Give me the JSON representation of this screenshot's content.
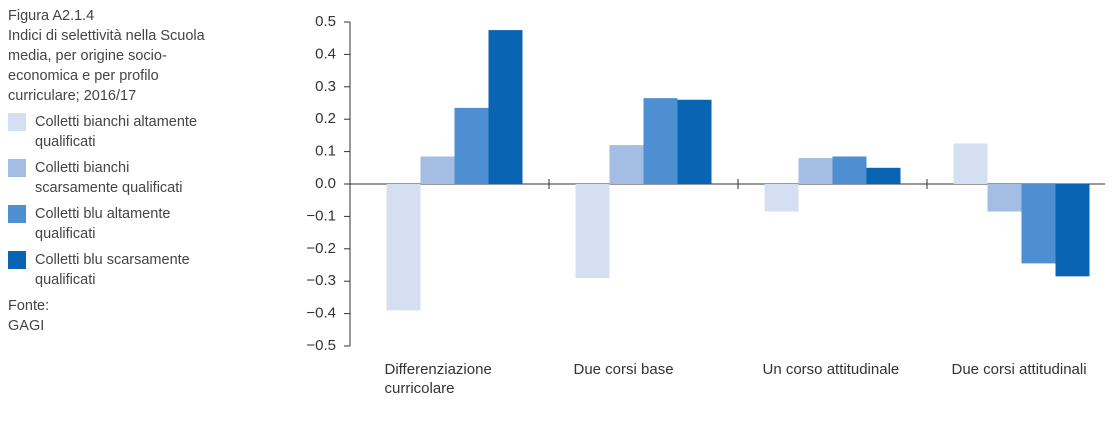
{
  "chart_data": {
    "type": "bar",
    "figure_label": "Figura A2.1.4",
    "title": "Indici di selettività nella Scuola media, per origine socio-economica e per profilo curriculare; 2016/17",
    "source_label": "Fonte:",
    "source": "GAGI",
    "categories": [
      "Differenziazione curricolare",
      "Due corsi base",
      "Un corso attitudinale",
      "Due corsi attitudinali"
    ],
    "series": [
      {
        "name": "Colletti bianchi altamente qualificati",
        "color": "#d4dff2",
        "values": [
          -0.39,
          -0.29,
          -0.085,
          0.125
        ]
      },
      {
        "name": "Colletti bianchi scarsamente qualificati",
        "color": "#a3bde3",
        "values": [
          0.085,
          0.12,
          0.08,
          -0.085
        ]
      },
      {
        "name": "Colletti blu altamente qualificati",
        "color": "#4d8fd1",
        "values": [
          0.235,
          0.265,
          0.085,
          -0.245
        ]
      },
      {
        "name": "Colletti blu scarsamente qualificati",
        "color": "#0a64b4",
        "values": [
          0.475,
          0.26,
          0.05,
          -0.285
        ]
      }
    ],
    "ylim": [
      -0.5,
      0.5
    ],
    "yticks": [
      {
        "value": -0.5,
        "label": "−0.5"
      },
      {
        "value": -0.4,
        "label": "−0.4"
      },
      {
        "value": -0.3,
        "label": "−0.3"
      },
      {
        "value": -0.2,
        "label": "−0.2"
      },
      {
        "value": -0.1,
        "label": "−0.1"
      },
      {
        "value": 0,
        "label": "0.0"
      },
      0.1,
      0.2,
      0.3,
      0.4,
      0.5
    ],
    "grid": false
  }
}
